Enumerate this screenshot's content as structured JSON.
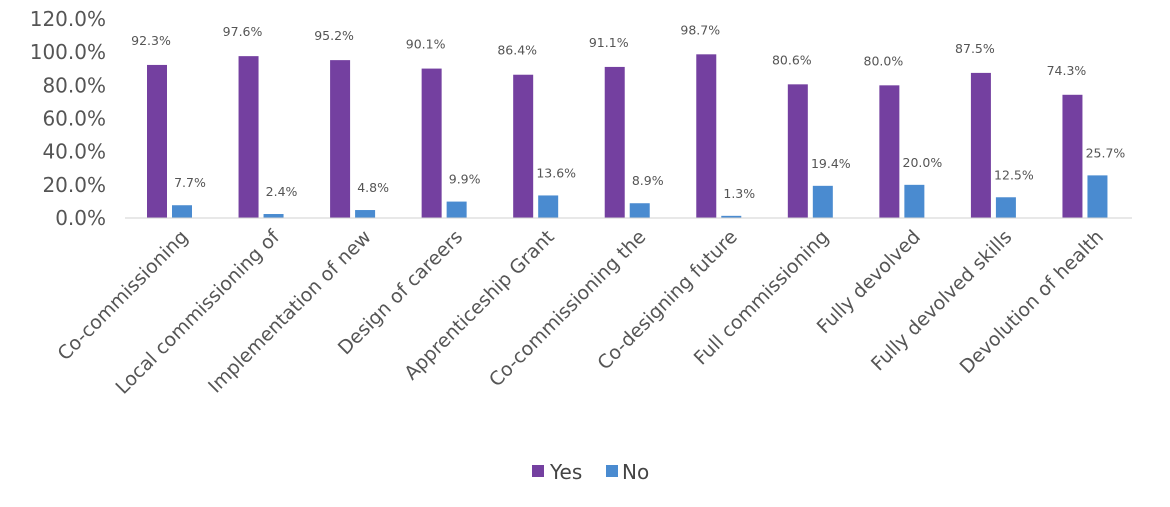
{
  "chart_data": {
    "type": "bar",
    "categories": [
      "Co-commissioning",
      "Local commissioning of",
      "Implementation of new",
      "Design of careers",
      "Apprenticeship Grant",
      "Co-commissioning the",
      "Co-designing future",
      "Full commissioning",
      "Fully devolved",
      "Fully devolved skills",
      "Devolution of health"
    ],
    "series": [
      {
        "name": "Yes",
        "color": "#7440a0",
        "values": [
          92.3,
          97.6,
          95.2,
          90.1,
          86.4,
          91.1,
          98.7,
          80.6,
          80.0,
          87.5,
          74.3
        ],
        "labels": [
          "92.3%",
          "97.6%",
          "95.2%",
          "90.1%",
          "86.4%",
          "91.1%",
          "98.7%",
          "80.6%",
          "80.0%",
          "87.5%",
          "74.3%"
        ]
      },
      {
        "name": "No",
        "color": "#4a8bd0",
        "values": [
          7.7,
          2.4,
          4.8,
          9.9,
          13.6,
          8.9,
          1.3,
          19.4,
          20.0,
          12.5,
          25.7
        ],
        "labels": [
          "7.7%",
          "2.4%",
          "4.8%",
          "9.9%",
          "13.6%",
          "8.9%",
          "1.3%",
          "19.4%",
          "20.0%",
          "12.5%",
          "25.7%"
        ]
      }
    ],
    "y_ticks": [
      "0.0%",
      "20.0%",
      "40.0%",
      "60.0%",
      "80.0%",
      "100.0%",
      "120.0%"
    ],
    "ylim": [
      0,
      120
    ],
    "grid": false,
    "legend_position": "bottom"
  }
}
